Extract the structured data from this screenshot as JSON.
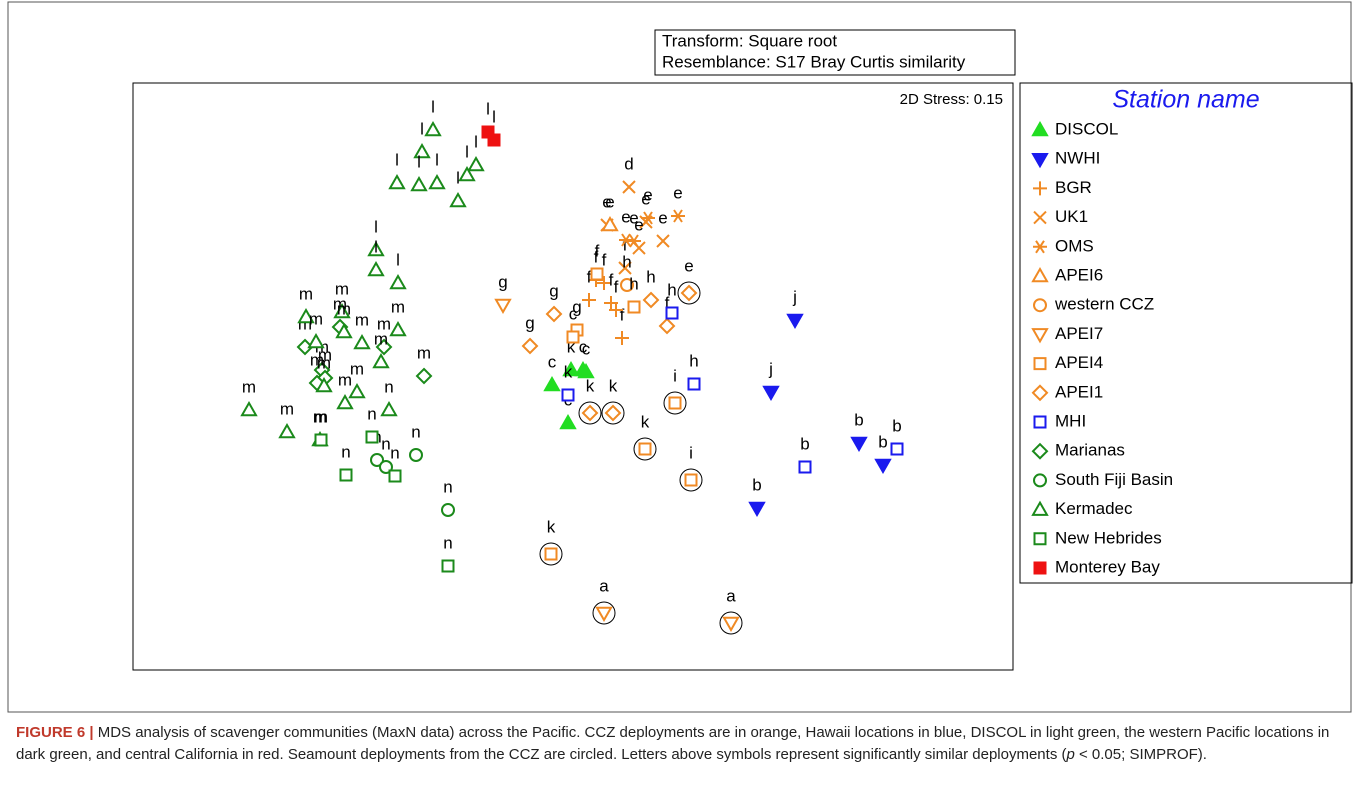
{
  "chart_data": {
    "type": "scatter",
    "annotations": [
      "Transform: Square root",
      "Resemblance: S17 Bray Curtis similarity"
    ],
    "stress_label": "2D Stress: 0.15",
    "legend_title": "Station name",
    "xlim": [
      133,
      1013
    ],
    "ylim": [
      670,
      83
    ],
    "series": [
      {
        "name": "DISCOL",
        "color": "#22dd22",
        "marker": "triangle-filled",
        "x": [
          552,
          571,
          583,
          586,
          568
        ],
        "values": [
          385,
          370,
          370,
          372,
          423
        ],
        "labels": [
          "c",
          "k",
          "c",
          "c",
          "c"
        ],
        "circled": [
          false,
          false,
          false,
          false,
          false
        ]
      },
      {
        "name": "NWHI",
        "color": "#1a1aee",
        "marker": "triangle-down-filled",
        "x": [
          795,
          771,
          859,
          883,
          757
        ],
        "values": [
          320,
          392,
          443,
          465,
          508
        ],
        "labels": [
          "j",
          "j",
          "b",
          "b",
          "b"
        ],
        "circled": [
          false,
          false,
          false,
          false,
          false
        ]
      },
      {
        "name": "BGR",
        "color": "#f08a24",
        "marker": "plus",
        "x": [
          596,
          589,
          604,
          611,
          622,
          616
        ],
        "values": [
          280,
          300,
          283,
          303,
          338,
          310
        ],
        "labels": [
          "f",
          "f",
          "f",
          "f",
          "f",
          "f"
        ],
        "circled": [
          false,
          false,
          false,
          false,
          false,
          false
        ]
      },
      {
        "name": "UK1",
        "color": "#f08a24",
        "marker": "x",
        "x": [
          629,
          607,
          646,
          663,
          639,
          625
        ],
        "values": [
          187,
          225,
          222,
          241,
          248,
          268
        ],
        "labels": [
          "d",
          "e",
          "e",
          "e",
          "e",
          "f"
        ],
        "circled": [
          false,
          false,
          false,
          false,
          false,
          false
        ]
      },
      {
        "name": "OMS",
        "color": "#f08a24",
        "marker": "asterisk",
        "x": [
          678,
          648,
          626,
          634
        ],
        "values": [
          216,
          218,
          240,
          241
        ],
        "labels": [
          "e",
          "e",
          "e",
          "e"
        ],
        "circled": [
          false,
          false,
          false,
          false
        ]
      },
      {
        "name": "APEI6",
        "color": "#f08a24",
        "marker": "triangle",
        "x": [
          610
        ],
        "values": [
          225
        ],
        "labels": [
          "e"
        ],
        "circled": [
          false
        ]
      },
      {
        "name": "western CCZ",
        "color": "#f08a24",
        "marker": "circle",
        "x": [
          627
        ],
        "values": [
          285
        ],
        "labels": [
          "h"
        ],
        "circled": [
          false
        ]
      },
      {
        "name": "APEI7",
        "color": "#f08a24",
        "marker": "triangle-down",
        "x": [
          503,
          604,
          731
        ],
        "values": [
          305,
          613,
          623
        ],
        "labels": [
          "g",
          "a",
          "a"
        ],
        "circled": [
          false,
          true,
          true
        ]
      },
      {
        "name": "APEI4",
        "color": "#f08a24",
        "marker": "square",
        "x": [
          597,
          577,
          573,
          634,
          675,
          645,
          691,
          551
        ],
        "values": [
          274,
          330,
          337,
          307,
          403,
          449,
          480,
          554
        ],
        "labels": [
          "f",
          "g",
          "c",
          "h",
          "i",
          "k",
          "i",
          "k"
        ],
        "circled": [
          false,
          false,
          false,
          false,
          true,
          true,
          true,
          true
        ]
      },
      {
        "name": "APEI1",
        "color": "#f08a24",
        "marker": "diamond",
        "x": [
          554,
          530,
          651,
          667,
          689,
          590,
          613
        ],
        "values": [
          314,
          346,
          300,
          326,
          293,
          413,
          413
        ],
        "labels": [
          "g",
          "g",
          "h",
          "f",
          "e",
          "k",
          "k"
        ],
        "circled": [
          false,
          false,
          false,
          false,
          true,
          true,
          true
        ]
      },
      {
        "name": "MHI",
        "color": "#1a1aee",
        "marker": "square",
        "x": [
          672,
          694,
          568,
          805,
          897
        ],
        "values": [
          313,
          384,
          395,
          467,
          449
        ],
        "labels": [
          "h",
          "h",
          "k",
          "b",
          "b"
        ],
        "circled": [
          false,
          false,
          false,
          false,
          false
        ]
      },
      {
        "name": "Marianas",
        "color": "#1b8a1b",
        "marker": "diamond",
        "x": [
          305,
          340,
          384,
          322,
          325,
          424,
          317
        ],
        "values": [
          347,
          327,
          347,
          370,
          378,
          376,
          383
        ],
        "labels": [
          "m",
          "m",
          "m",
          "m",
          "m",
          "m",
          "m"
        ],
        "circled": [
          false,
          false,
          false,
          false,
          false,
          false,
          false
        ]
      },
      {
        "name": "South Fiji Basin",
        "color": "#1b8a1b",
        "marker": "circle",
        "x": [
          377,
          386,
          416,
          448
        ],
        "values": [
          460,
          467,
          455,
          510
        ],
        "labels": [
          "n",
          "n",
          "n",
          "n"
        ],
        "circled": [
          false,
          false,
          false,
          false
        ]
      },
      {
        "name": "Kermadec",
        "color": "#1b8a1b",
        "marker": "triangle",
        "x": [
          433,
          422,
          397,
          419,
          437,
          476,
          467,
          458,
          376,
          376,
          398,
          306,
          342,
          362,
          398,
          344,
          316,
          324,
          357,
          345,
          381,
          249,
          287,
          320,
          389
        ],
        "values": [
          130,
          152,
          183,
          185,
          183,
          165,
          175,
          201,
          250,
          270,
          283,
          317,
          312,
          343,
          330,
          332,
          342,
          386,
          392,
          403,
          362,
          410,
          432,
          440,
          410
        ],
        "labels": [
          "l",
          "l",
          "l",
          "l",
          "l",
          "l",
          "l",
          "l",
          "l",
          "l",
          "l",
          "m",
          "m",
          "m",
          "m",
          "m",
          "m",
          "m",
          "m",
          "m",
          "m",
          "m",
          "m",
          "m",
          "n"
        ],
        "circled": [
          false,
          false,
          false,
          false,
          false,
          false,
          false,
          false,
          false,
          false,
          false,
          false,
          false,
          false,
          false,
          false,
          false,
          false,
          false,
          false,
          false,
          false,
          false,
          false,
          false
        ]
      },
      {
        "name": "New Hebrides",
        "color": "#1b8a1b",
        "marker": "square",
        "x": [
          321,
          372,
          346,
          395,
          448
        ],
        "values": [
          440,
          437,
          475,
          476,
          566
        ],
        "labels": [
          "m",
          "n",
          "n",
          "n",
          "n"
        ],
        "circled": [
          false,
          false,
          false,
          false,
          false
        ]
      },
      {
        "name": "Monterey Bay",
        "color": "#ee1111",
        "marker": "square-filled",
        "x": [
          488,
          494
        ],
        "values": [
          132,
          140
        ],
        "labels": [
          "l",
          "l"
        ],
        "circled": [
          false,
          false
        ]
      }
    ]
  },
  "caption": {
    "label": "FIGURE 6 |",
    "text": " MDS analysis of scavenger communities (MaxN data) across the Pacific. CCZ deployments are in orange, Hawaii locations in blue, DISCOL in light green, the western Pacific locations in dark green, and central California in red. Seamount deployments from the CCZ are circled. Letters above symbols represent significantly similar deployments (",
    "italic": "p",
    "end": " < 0.05; SIMPROF)."
  }
}
